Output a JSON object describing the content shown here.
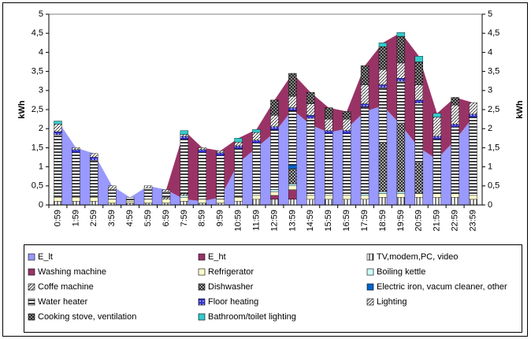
{
  "chart_data": {
    "type": "bar",
    "ylabel": "kWh",
    "y2label": "kWh",
    "categories": [
      "0:59",
      "1:59",
      "2:59",
      "3:59",
      "4:59",
      "5:59",
      "6:59",
      "7:59",
      "8:59",
      "9:59",
      "10:59",
      "11:59",
      "12:59",
      "13:59",
      "14:59",
      "15:59",
      "16:59",
      "17:59",
      "18:59",
      "19:59",
      "20:59",
      "21:59",
      "22:59",
      "23:59"
    ],
    "ylim": [
      0,
      5
    ],
    "yticks": [
      0,
      {
        "value": 0.5,
        "label": "0,5"
      },
      1,
      {
        "value": 1.5,
        "label": "1,5"
      },
      2,
      {
        "value": 2.5,
        "label": "2,5"
      },
      3,
      {
        "value": 3.5,
        "label": "3,5"
      },
      4,
      {
        "value": 4.5,
        "label": "4,5"
      },
      5
    ],
    "y2lim": [
      0,
      5
    ],
    "y2ticks": [
      0,
      {
        "value": 0.5,
        "label": "0,5"
      },
      1,
      {
        "value": 1.5,
        "label": "1,5"
      },
      2,
      {
        "value": 2.5,
        "label": "2,5"
      },
      3,
      {
        "value": 3.5,
        "label": "3,5"
      },
      4,
      {
        "value": 4.5,
        "label": "4,5"
      },
      5
    ],
    "series": [
      {
        "name": "E_lt",
        "type": "area",
        "color": "#9999ff",
        "values": [
          2.2,
          1.5,
          1.35,
          0.5,
          0.2,
          0.5,
          0.4,
          0.15,
          0.1,
          0.2,
          1.1,
          1.5,
          1.9,
          2.5,
          2.1,
          1.9,
          2.0,
          2.45,
          2.6,
          2.1,
          1.5,
          1.2,
          1.7,
          2.3
        ]
      },
      {
        "name": "E_ht",
        "type": "area",
        "color": "#993366",
        "values": [
          0,
          0,
          0,
          0,
          0,
          0,
          0,
          1.8,
          1.4,
          1.22,
          0.65,
          0.48,
          0.85,
          0.95,
          0.85,
          0.65,
          0.45,
          1.2,
          1.65,
          2.42,
          2.4,
          1.2,
          1.12,
          0.38
        ]
      },
      {
        "name": "TV,modem,PC, video",
        "type": "bar",
        "color": "#ffffff",
        "values": [
          0.1,
          0.1,
          0.1,
          0.05,
          0.05,
          0.05,
          0.05,
          0.1,
          0.05,
          0.05,
          0.1,
          0.15,
          0.15,
          0.15,
          0.15,
          0.15,
          0.15,
          0.15,
          0.2,
          0.2,
          0.2,
          0.2,
          0.2,
          0.15
        ]
      },
      {
        "name": "Washing machine",
        "type": "bar",
        "color": "#993366",
        "values": [
          0,
          0,
          0,
          0,
          0,
          0,
          0,
          0,
          0,
          0,
          0,
          0,
          0.1,
          0.25,
          0,
          0,
          0,
          0,
          0,
          0,
          0,
          0,
          0,
          0
        ]
      },
      {
        "name": "Refrigerator",
        "type": "bar",
        "color": "#ffffcc",
        "values": [
          0.1,
          0.1,
          0.1,
          0.1,
          0.05,
          0.1,
          0.1,
          0.1,
          0.1,
          0.1,
          0.1,
          0.1,
          0.1,
          0.1,
          0.1,
          0.1,
          0.1,
          0.1,
          0.1,
          0.1,
          0.1,
          0.1,
          0.1,
          0.1
        ]
      },
      {
        "name": "Boiling kettle",
        "type": "bar",
        "color": "#ccffff",
        "values": [
          0,
          0,
          0,
          0,
          0,
          0,
          0,
          0.05,
          0,
          0,
          0,
          0,
          0.05,
          0.05,
          0,
          0,
          0,
          0.05,
          0.05,
          0.05,
          0,
          0,
          0,
          0
        ]
      },
      {
        "name": "Coffe machine",
        "type": "bar",
        "color": "#e8e8e8",
        "values": [
          0,
          0,
          0,
          0,
          0,
          0,
          0.05,
          0.05,
          0,
          0,
          0,
          0,
          0,
          0,
          0,
          0,
          0,
          0,
          0,
          0,
          0,
          0,
          0,
          0
        ]
      },
      {
        "name": "Dishwasher",
        "type": "bar",
        "color": "#bbbbbb",
        "values": [
          0,
          0,
          0,
          0,
          0,
          0,
          0,
          0,
          0,
          0,
          0,
          0,
          0,
          0.4,
          0,
          0,
          0,
          0,
          1.3,
          1.8,
          0.8,
          0,
          0,
          0
        ]
      },
      {
        "name": "Electric iron, vacum cleaner, other",
        "type": "bar",
        "color": "#0066cc",
        "values": [
          0,
          0,
          0,
          0,
          0,
          0,
          0,
          0,
          0,
          0,
          0,
          0,
          0,
          0.1,
          0,
          0,
          0,
          0,
          0,
          0,
          0,
          0,
          0,
          0
        ]
      },
      {
        "name": "Water heater",
        "type": "bar",
        "color": "#ffffff",
        "values": [
          1.64,
          1.17,
          0.97,
          0.25,
          0.1,
          0.3,
          0.15,
          1.42,
          1.22,
          1.14,
          1.27,
          1.37,
          1.57,
          1.42,
          2.02,
          1.62,
          1.62,
          2.27,
          1.42,
          1.09,
          1.57,
          1.42,
          1.74,
          2.05
        ]
      },
      {
        "name": "Floor heating",
        "type": "bar",
        "color": "#3333cc",
        "values": [
          0.08,
          0.08,
          0.08,
          0,
          0,
          0,
          0,
          0.08,
          0.08,
          0.08,
          0.08,
          0.08,
          0.08,
          0.08,
          0.08,
          0.08,
          0.08,
          0.08,
          0.08,
          0.08,
          0.08,
          0.08,
          0.08,
          0.08
        ]
      },
      {
        "name": "Lighting",
        "type": "bar",
        "color": "#ffffff",
        "values": [
          0.2,
          0.05,
          0.1,
          0.1,
          0,
          0.05,
          0.05,
          0.05,
          0.05,
          0.05,
          0.1,
          0.2,
          0.3,
          0.3,
          0.3,
          0.3,
          0.3,
          0.5,
          0.4,
          0.4,
          0.4,
          0.5,
          0.5,
          0.3
        ]
      },
      {
        "name": "Cooking stove, ventilation",
        "type": "bar",
        "color": "#999999",
        "values": [
          0,
          0,
          0,
          0,
          0,
          0,
          0,
          0,
          0,
          0,
          0,
          0,
          0.4,
          0.6,
          0.3,
          0.3,
          0.2,
          0.5,
          0.6,
          0.7,
          0.6,
          0,
          0.2,
          0
        ]
      },
      {
        "name": "Bathroom/toilet lighting",
        "type": "bar",
        "color": "#33cccc",
        "values": [
          0.08,
          0,
          0,
          0,
          0,
          0,
          0,
          0.1,
          0,
          0,
          0.1,
          0.08,
          0,
          0,
          0,
          0,
          0,
          0,
          0.1,
          0.1,
          0.15,
          0.1,
          0,
          0
        ]
      }
    ]
  }
}
